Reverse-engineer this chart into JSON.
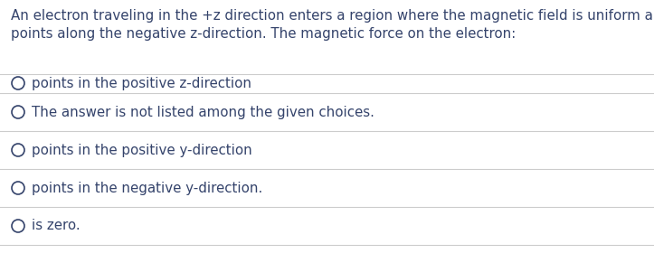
{
  "question_line1": "An electron traveling in the +z direction enters a region where the magnetic field is uniform and",
  "question_line2": "points along the negative z-direction. The magnetic force on the electron:",
  "choices": [
    "points in the positive z-direction",
    "The answer is not listed among the given choices.",
    "points in the positive y-direction",
    "points in the negative y-direction.",
    "is zero."
  ],
  "bg_color": "#ffffff",
  "question_color": "#34436b",
  "choice_color": "#34436b",
  "line_color": "#cccccc",
  "circle_color": "#34436b",
  "question_fontsize": 10.8,
  "choice_fontsize": 10.8,
  "figwidth": 7.23,
  "figheight": 2.91,
  "dpi": 100
}
